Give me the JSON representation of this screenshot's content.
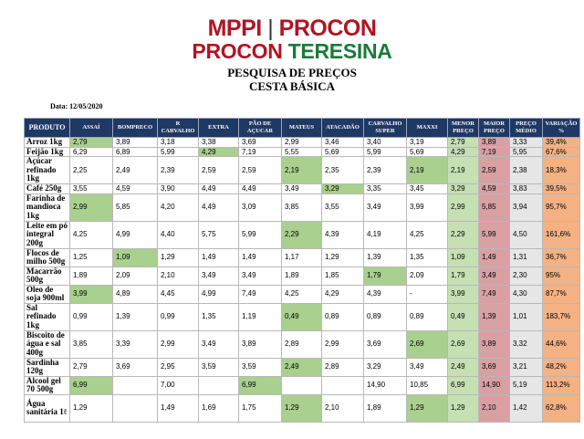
{
  "header": {
    "logo_mppi": "MPPI",
    "logo_sep": "|",
    "logo_procon": "PROCON",
    "logo_procon2": "PROCON",
    "logo_teresina": "TERESINA",
    "title1": "PESQUISA DE PREÇOS",
    "title2": "CESTA BÁSICA",
    "date": "Data: 12/05/2020"
  },
  "table": {
    "headers": [
      "PRODUTO",
      "ASSAÍ",
      "BOMPRECO",
      "R CARVALHO",
      "EXTRA",
      "PÃO DE AÇUCAR",
      "MATEUS",
      "ATACADÃO",
      "CARVALHO SUPER",
      "MAXXI",
      "MENOR PREÇO",
      "MAIOR PREÇO",
      "PREÇO MÉDIO",
      "VARIAÇÃO %"
    ],
    "rows": [
      {
        "name": "Arroz 1kg",
        "h": 9,
        "cells": [
          "2,79",
          "3,89",
          "3,18",
          "3,38",
          "3,69",
          "2,99",
          "3,46",
          "3,40",
          "3,19",
          "2,79",
          "3,89",
          "3,33",
          "39,4%"
        ],
        "green": [
          0
        ]
      },
      {
        "name": "Feijão 1kg",
        "h": 9,
        "cells": [
          "6,29",
          "6,89",
          "5,99",
          "4,29",
          "7,19",
          "5,55",
          "5,69",
          "5,99",
          "5,69",
          "4,29",
          "7,19",
          "5,95",
          "67,6%"
        ],
        "green": [
          3
        ]
      },
      {
        "name": "Açúcar refinado 1kg",
        "h": 30,
        "cells": [
          "2,25",
          "2,49",
          "2,39",
          "2,59",
          "2,59",
          "2,19",
          "2,35",
          "2,39",
          "2,19",
          "2,19",
          "2,59",
          "2,38",
          "18,3%"
        ],
        "green": [
          5,
          8
        ]
      },
      {
        "name": "Café 250g",
        "h": 9,
        "cells": [
          "3,55",
          "4,59",
          "3,90",
          "4,49",
          "4,49",
          "3,49",
          "3,29",
          "3,35",
          "3,45",
          "3,29",
          "4,59",
          "3,83",
          "39,5%"
        ],
        "green": [
          6
        ]
      },
      {
        "name": "Farinha de mandioca 1kg",
        "h": 30,
        "cells": [
          "2,99",
          "5,85",
          "4,20",
          "4,49",
          "3,09",
          "3,85",
          "3,55",
          "3,49",
          "3,99",
          "2,99",
          "5,85",
          "3,94",
          "95,7%"
        ],
        "green": [
          0
        ]
      },
      {
        "name": "Leite em pó integral 200g",
        "h": 30,
        "cells": [
          "4,25",
          "4,99",
          "4,40",
          "5,75",
          "5,99",
          "2,29",
          "4,39",
          "4,19",
          "4,25",
          "2,29",
          "5,99",
          "4,50",
          "161,6%"
        ],
        "green": [
          5
        ]
      },
      {
        "name": "Flocos de milho 500g",
        "h": 20,
        "cells": [
          "1,25",
          "1,09",
          "1,29",
          "1,49",
          "1,49",
          "1,17",
          "1,29",
          "1,39",
          "1,35",
          "1,09",
          "1,49",
          "1,31",
          "36,7%"
        ],
        "green": [
          1
        ]
      },
      {
        "name": "Macarrão 500g",
        "h": 20,
        "cells": [
          "1,89",
          "2,09",
          "2,10",
          "3,49",
          "3,49",
          "1,89",
          "1,85",
          "1,79",
          "2,09",
          "1,79",
          "3,49",
          "2,30",
          "95%"
        ],
        "green": [
          7
        ]
      },
      {
        "name": "Óleo de soja 900ml",
        "h": 20,
        "cells": [
          "3,99",
          "4,89",
          "4,45",
          "4,99",
          "7,49",
          "4,25",
          "4,29",
          "4,39",
          "-",
          "3,99",
          "7,49",
          "4,30",
          "87,7%"
        ],
        "green": [
          0
        ]
      },
      {
        "name": "Sal refinado 1kg",
        "h": 30,
        "cells": [
          "0,99",
          "1,39",
          "0,99",
          "1,35",
          "1,19",
          "0,49",
          "0,89",
          "0,89",
          "0,89",
          "0,49",
          "1,39",
          "1,01",
          "183,7%"
        ],
        "green": [
          5
        ]
      },
      {
        "name": "Biscoito de água e sal 400g",
        "h": 30,
        "cells": [
          "3,85",
          "3,39",
          "2,99",
          "3,49",
          "3,89",
          "2,89",
          "2,99",
          "3,69",
          "2,69",
          "2,69",
          "3,89",
          "3,32",
          "44,6%"
        ],
        "green": [
          8
        ]
      },
      {
        "name": "Sardinha 120g",
        "h": 20,
        "cells": [
          "2,79",
          "3,69",
          "2,95",
          "3,59",
          "3,59",
          "2,49",
          "2,89",
          "3,29",
          "3,49",
          "2,49",
          "3,69",
          "3,21",
          "48,2%"
        ],
        "green": [
          5
        ]
      },
      {
        "name": "Álcool gel 70 500g",
        "h": 20,
        "cells": [
          "6,99",
          "",
          "7,00",
          "",
          "6,99",
          "",
          "",
          "14,90",
          "10,85",
          "6,99",
          "14,90",
          "5,19",
          "113,2%"
        ],
        "green": [
          0,
          4
        ]
      },
      {
        "name": "Água sanitária 1ℓ",
        "h": 30,
        "cells": [
          "1,29",
          "",
          "1,49",
          "1,69",
          "1,75",
          "1,29",
          "2,10",
          "1,89",
          "1,29",
          "1,29",
          "2,10",
          "1,42",
          "62,8%"
        ],
        "green": [
          5,
          8
        ]
      }
    ]
  }
}
